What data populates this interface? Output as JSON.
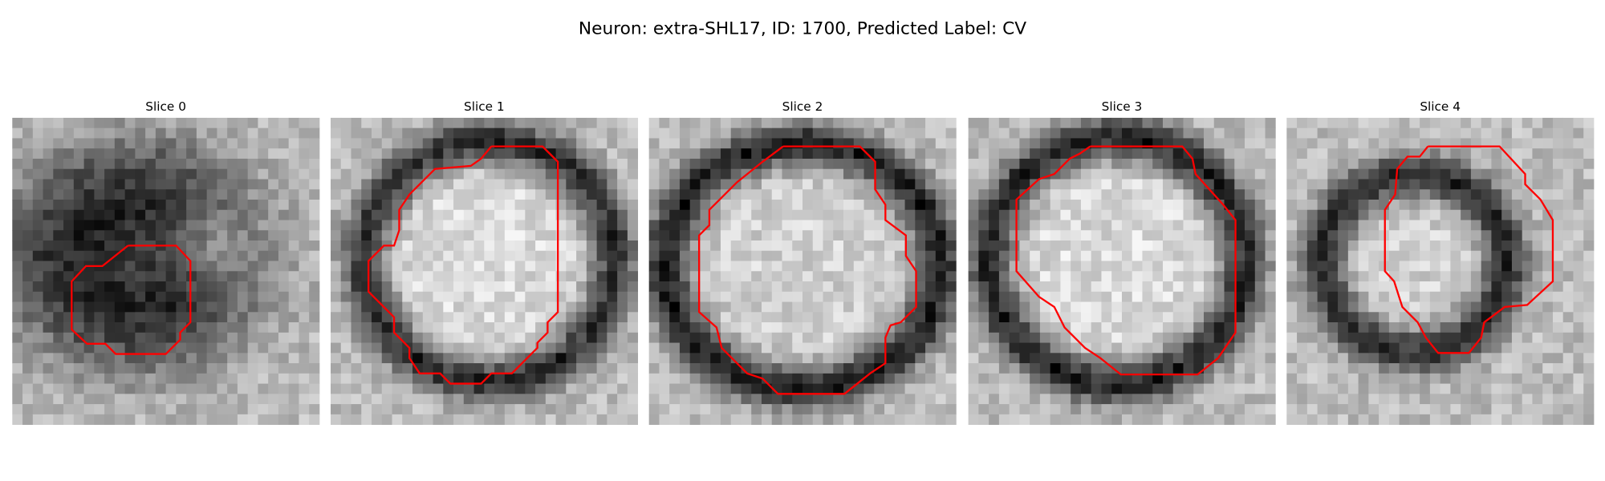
{
  "title": "Neuron: extra-SHL17, ID: 1700, Predicted Label: CV",
  "panels": [
    {
      "title": "Slice 0"
    },
    {
      "title": "Slice 1"
    },
    {
      "title": "Slice 2"
    },
    {
      "title": "Slice 3"
    },
    {
      "title": "Slice 4"
    }
  ]
}
